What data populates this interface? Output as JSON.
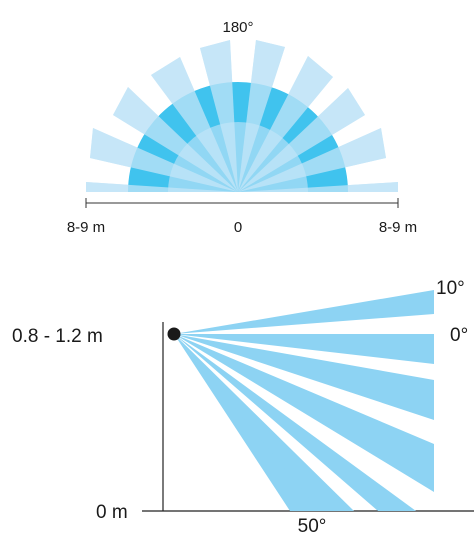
{
  "top_view": {
    "angle_label": "180°",
    "range_left": "8-9 m",
    "center": "0",
    "range_right": "8-9 m",
    "colors": {
      "beam": "#c6e6f8",
      "inner_ring": "#40c3ee",
      "core": "#91d7f4"
    }
  },
  "side_view": {
    "mount_height": "0.8 - 1.2 m",
    "ground": "0 m",
    "angle_up": "10°",
    "angle_level": "0°",
    "angle_down": "50°",
    "colors": {
      "beam": "#8dd3f3",
      "sensor": "#1a1a1a",
      "axis": "#222222"
    }
  }
}
